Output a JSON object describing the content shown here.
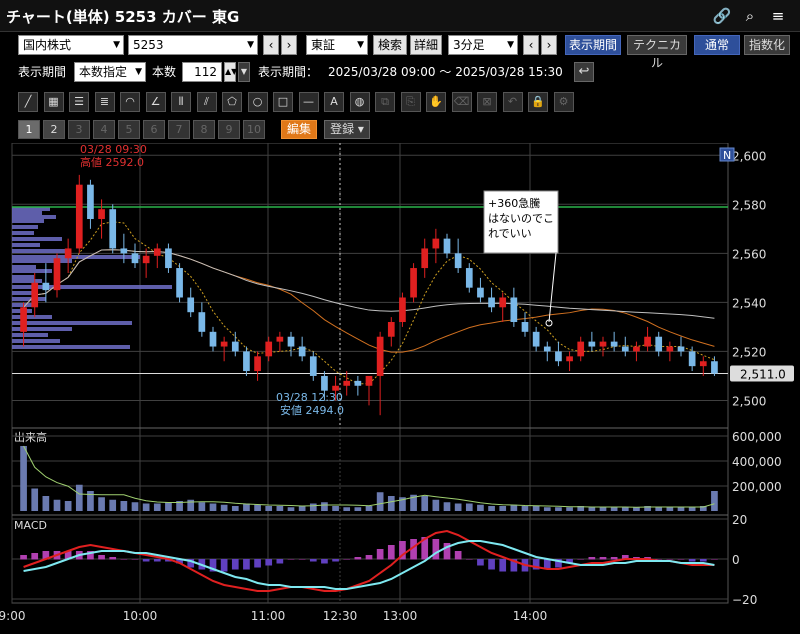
{
  "window": {
    "title": "チャート(単体) 5253 カバー 東G"
  },
  "toolbar": {
    "market": "国内株式",
    "code": "5253",
    "exchange": "東証",
    "search": "検索",
    "detail": "詳細",
    "interval": "3分足",
    "period_display": "表示期間",
    "technical": "テクニカル",
    "normal": "通常",
    "index": "指数化"
  },
  "period_row": {
    "label": "表示期間",
    "mode": "本数指定",
    "count_label": "本数",
    "count": "112",
    "range_label": "表示期間：",
    "range": "2025/03/28 09:00 ～ 2025/03/28 15:30"
  },
  "row3": {
    "pages": [
      "1",
      "2",
      "3",
      "4",
      "5",
      "6",
      "7",
      "8",
      "9",
      "10"
    ],
    "edit": "編集",
    "register": "登録"
  },
  "tools": [
    "line-tool-icon",
    "ruler-tool-icon",
    "hlines-tool-icon",
    "fib-tool-icon",
    "arc-tool-icon",
    "fan-tool-icon",
    "vlines-tool-icon",
    "angle-tool-icon",
    "pentagon-tool-icon",
    "circle-tool-icon",
    "rect-tool-icon",
    "hline-tool-icon",
    "text-tool-icon",
    "icon-tool-icon",
    "copy-tool-icon",
    "paste-tool-icon",
    "hand-tool-icon",
    "eraser-tool-icon",
    "eraser-all-icon",
    "undo-icon",
    "lock-icon",
    "settings-icon"
  ],
  "chart": {
    "price_ticks": [
      "2,600",
      "2,580",
      "2,560",
      "2,540",
      "2,520",
      "2,500"
    ],
    "current_price": "2,511.0",
    "high_annotation": {
      "time": "03/28 09:30",
      "text": "高値 2592.0"
    },
    "low_annotation": {
      "time": "03/28 12:30",
      "text": "安値 2494.0"
    },
    "note": [
      "+360急騰",
      "はないのでこ",
      "れでいい"
    ],
    "volume_label": "出来高",
    "volume_ticks": [
      "600,000",
      "400,000",
      "200,000"
    ],
    "macd_label": "MACD",
    "macd_ticks": [
      "20",
      "0",
      "−20"
    ],
    "time_ticks": [
      "9:00",
      "10:00",
      "11:00",
      "12:30",
      "13:00",
      "14:00"
    ],
    "n_badge": "N"
  },
  "chart_data": {
    "type": "candlestick",
    "interval": "3分足",
    "ylim": [
      2490,
      2605
    ],
    "ohlc": [
      [
        2528,
        2540,
        2522,
        2538
      ],
      [
        2538,
        2552,
        2534,
        2548
      ],
      [
        2548,
        2556,
        2540,
        2545
      ],
      [
        2545,
        2560,
        2542,
        2558
      ],
      [
        2558,
        2566,
        2552,
        2562
      ],
      [
        2562,
        2592,
        2560,
        2588
      ],
      [
        2588,
        2590,
        2570,
        2574
      ],
      [
        2574,
        2582,
        2566,
        2578
      ],
      [
        2578,
        2580,
        2560,
        2562
      ],
      [
        2562,
        2568,
        2556,
        2560
      ],
      [
        2560,
        2564,
        2554,
        2556
      ],
      [
        2556,
        2562,
        2550,
        2559
      ],
      [
        2559,
        2564,
        2554,
        2562
      ],
      [
        2562,
        2564,
        2552,
        2554
      ],
      [
        2554,
        2556,
        2540,
        2542
      ],
      [
        2542,
        2546,
        2534,
        2536
      ],
      [
        2536,
        2540,
        2526,
        2528
      ],
      [
        2528,
        2530,
        2520,
        2522
      ],
      [
        2522,
        2526,
        2516,
        2524
      ],
      [
        2524,
        2528,
        2518,
        2520
      ],
      [
        2520,
        2522,
        2510,
        2512
      ],
      [
        2512,
        2520,
        2508,
        2518
      ],
      [
        2518,
        2526,
        2516,
        2524
      ],
      [
        2524,
        2528,
        2520,
        2526
      ],
      [
        2526,
        2528,
        2518,
        2522
      ],
      [
        2522,
        2526,
        2516,
        2518
      ],
      [
        2518,
        2520,
        2508,
        2510
      ],
      [
        2510,
        2512,
        2500,
        2504
      ],
      [
        2504,
        2510,
        2500,
        2506
      ],
      [
        2506,
        2512,
        2502,
        2508
      ],
      [
        2508,
        2510,
        2502,
        2506
      ],
      [
        2506,
        2510,
        2498,
        2510
      ],
      [
        2510,
        2528,
        2494,
        2526
      ],
      [
        2526,
        2534,
        2522,
        2532
      ],
      [
        2532,
        2544,
        2530,
        2542
      ],
      [
        2542,
        2556,
        2540,
        2554
      ],
      [
        2554,
        2566,
        2550,
        2562
      ],
      [
        2562,
        2570,
        2556,
        2566
      ],
      [
        2566,
        2568,
        2558,
        2560
      ],
      [
        2560,
        2566,
        2552,
        2554
      ],
      [
        2554,
        2556,
        2544,
        2546
      ],
      [
        2546,
        2550,
        2540,
        2542
      ],
      [
        2542,
        2546,
        2536,
        2538
      ],
      [
        2538,
        2544,
        2532,
        2542
      ],
      [
        2542,
        2546,
        2530,
        2532
      ],
      [
        2532,
        2536,
        2526,
        2528
      ],
      [
        2528,
        2530,
        2520,
        2522
      ],
      [
        2522,
        2524,
        2516,
        2520
      ],
      [
        2520,
        2524,
        2514,
        2516
      ],
      [
        2516,
        2520,
        2512,
        2518
      ],
      [
        2518,
        2526,
        2516,
        2524
      ],
      [
        2524,
        2528,
        2520,
        2522
      ],
      [
        2522,
        2526,
        2518,
        2524
      ],
      [
        2524,
        2528,
        2520,
        2522
      ],
      [
        2522,
        2526,
        2518,
        2520
      ],
      [
        2520,
        2524,
        2516,
        2522
      ],
      [
        2522,
        2530,
        2520,
        2526
      ],
      [
        2526,
        2528,
        2518,
        2520
      ],
      [
        2520,
        2524,
        2516,
        2522
      ],
      [
        2522,
        2526,
        2518,
        2520
      ],
      [
        2520,
        2522,
        2512,
        2514
      ],
      [
        2514,
        2518,
        2510,
        2516
      ],
      [
        2516,
        2518,
        2510,
        2511
      ]
    ],
    "volume": [
      520000,
      180000,
      120000,
      90000,
      80000,
      210000,
      160000,
      110000,
      90000,
      80000,
      70000,
      60000,
      60000,
      70000,
      80000,
      90000,
      70000,
      60000,
      50000,
      40000,
      60000,
      50000,
      40000,
      40000,
      30000,
      40000,
      60000,
      70000,
      40000,
      30000,
      30000,
      40000,
      150000,
      120000,
      110000,
      130000,
      120000,
      90000,
      70000,
      60000,
      60000,
      50000,
      40000,
      40000,
      50000,
      40000,
      40000,
      30000,
      30000,
      30000,
      40000,
      30000,
      30000,
      30000,
      30000,
      30000,
      40000,
      30000,
      30000,
      30000,
      30000,
      40000,
      160000
    ],
    "macd": [
      -4,
      -2,
      0,
      2,
      4,
      6,
      7,
      6,
      5,
      4,
      3,
      2,
      1,
      0,
      -2,
      -5,
      -8,
      -11,
      -13,
      -14,
      -15,
      -16,
      -16,
      -15,
      -14,
      -14,
      -15,
      -16,
      -16,
      -15,
      -13,
      -11,
      -7,
      -3,
      2,
      6,
      10,
      13,
      14,
      12,
      9,
      6,
      3,
      1,
      -1,
      -3,
      -4,
      -5,
      -5,
      -4,
      -3,
      -2,
      -2,
      -1,
      0,
      0,
      0,
      -1,
      -1,
      -2,
      -3,
      -3,
      -3
    ],
    "signal": [
      -6,
      -5,
      -4,
      -2,
      0,
      2,
      3,
      4,
      4,
      4,
      3,
      3,
      2,
      1,
      0,
      -1,
      -3,
      -5,
      -7,
      -9,
      -10,
      -12,
      -13,
      -13,
      -14,
      -14,
      -14,
      -14,
      -15,
      -15,
      -14,
      -13,
      -12,
      -10,
      -7,
      -4,
      -1,
      3,
      6,
      8,
      9,
      9,
      8,
      7,
      5,
      3,
      1,
      0,
      -1,
      -2,
      -3,
      -3,
      -3,
      -2,
      -2,
      -1,
      -1,
      -1,
      -1,
      -2,
      -2,
      -2,
      -3
    ]
  },
  "colors": {
    "up": "#e02020",
    "down": "#7ab8e8",
    "grid": "#404040",
    "green_line": "#2bb34a",
    "price_line": "#dddddd",
    "macd": "#e02020",
    "signal": "#7ee8f0",
    "hist_pos": "#b040b0",
    "hist_neg": "#6040c0"
  }
}
